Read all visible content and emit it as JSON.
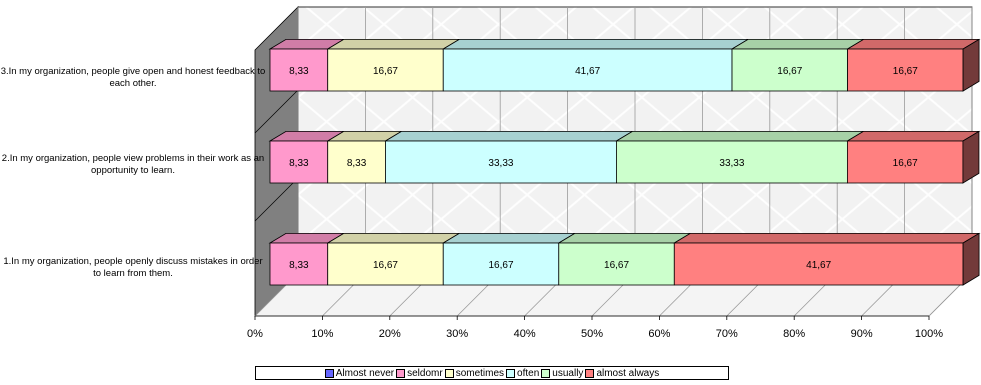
{
  "chart_data": {
    "type": "bar",
    "orientation": "horizontal",
    "stacked": "100%",
    "three_d": true,
    "categories": [
      "3.In my organization, people give open and honest feedback to each other.",
      "2.In my organization, people view problems in their work as an opportunity to learn.",
      "1.In my organization, people openly discuss mistakes in order to learn from them."
    ],
    "series": [
      {
        "name": "Almost never",
        "color": "#6666ff",
        "values": [
          0,
          0,
          0
        ]
      },
      {
        "name": "seldomr",
        "color": "#ff99cc",
        "values": [
          8.33,
          8.33,
          8.33
        ],
        "labels": [
          "8,33",
          "8,33",
          "8,33"
        ]
      },
      {
        "name": "sometimes",
        "color": "#ffffcc",
        "values": [
          16.67,
          8.33,
          16.67
        ],
        "labels": [
          "16,67",
          "8,33",
          "16,67"
        ]
      },
      {
        "name": "often",
        "color": "#ccffff",
        "values": [
          41.67,
          33.33,
          16.67
        ],
        "labels": [
          "41,67",
          "33,33",
          "16,67"
        ]
      },
      {
        "name": "usually",
        "color": "#ccffcc",
        "values": [
          16.67,
          33.33,
          16.67
        ],
        "labels": [
          "16,67",
          "33,33",
          "16,67"
        ]
      },
      {
        "name": "almost always",
        "color": "#ff8080",
        "values": [
          16.67,
          16.67,
          41.67
        ],
        "labels": [
          "16,67",
          "16,67",
          "41,67"
        ]
      }
    ],
    "x_ticks": [
      "0%",
      "10%",
      "20%",
      "30%",
      "40%",
      "50%",
      "60%",
      "70%",
      "80%",
      "90%",
      "100%"
    ],
    "xlim": [
      0,
      100
    ],
    "grid": true,
    "legend_position": "bottom"
  }
}
